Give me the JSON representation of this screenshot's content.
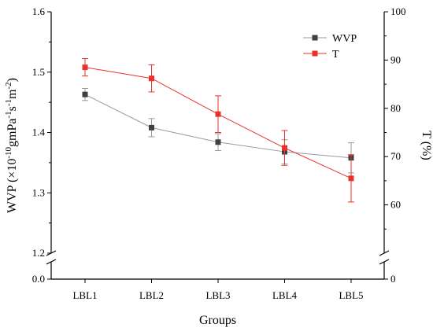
{
  "chart_data": {
    "type": "line",
    "categories": [
      "LBL1",
      "LBL2",
      "LBL3",
      "LBL4",
      "LBL5"
    ],
    "xlabel": "Groups",
    "ylabel_parts": {
      "base": "WVP (×10",
      "exp1": "-10",
      "mid": "gmPa",
      "exp2": "-1",
      "s": "s",
      "exp3": "-1",
      "m": "m",
      "exp4": "-2",
      "close": ")"
    },
    "y2label": "T (%)",
    "left_axis": {
      "lower_ticks": [
        "0.0"
      ],
      "upper_ticks": [
        "1.2",
        "1.3",
        "1.4",
        "1.5",
        "1.6"
      ],
      "break_range": [
        0.0,
        1.2
      ],
      "ylim": [
        1.2,
        1.6
      ]
    },
    "right_axis": {
      "lower_ticks": [
        "0"
      ],
      "upper_ticks": [
        "60",
        "70",
        "80",
        "90",
        "100"
      ],
      "ylim": [
        50,
        100
      ]
    },
    "series": [
      {
        "name": "WVP",
        "axis": "left",
        "color": "#404040",
        "marker_color": "#404040",
        "line_color": "#9a9a9a",
        "values": [
          1.463,
          1.408,
          1.384,
          1.368,
          1.358
        ],
        "errors": [
          0.01,
          0.015,
          0.014,
          0.02,
          0.025
        ]
      },
      {
        "name": "T",
        "axis": "right",
        "color": "#e8332d",
        "marker_color": "#e8332d",
        "line_color": "#e8332d",
        "values": [
          88.5,
          86.2,
          78.8,
          71.8,
          65.5
        ],
        "errors": [
          1.8,
          2.8,
          3.8,
          3.6,
          4.9
        ]
      }
    ],
    "legend_position": "top-right",
    "grid": false
  }
}
